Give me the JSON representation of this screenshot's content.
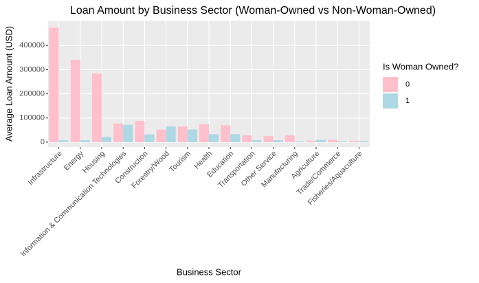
{
  "chart_data": {
    "type": "bar",
    "title": "Loan Amount by Business Sector (Woman-Owned vs Non-Woman-Owned)",
    "x_label": "Business Sector",
    "y_label": "Average Loan Amount (USD)",
    "legend_title": "Is Woman Owned?",
    "categories": [
      "Infrastructure",
      "Energy",
      "Housing",
      "Information & Communication Technologies",
      "Construction",
      "Forestry/Wood",
      "Tourism",
      "Health",
      "Education",
      "Transportation",
      "Other Service",
      "Manufacturing",
      "Agriculture",
      "Trade/Commerce",
      "Fisheries/Aquaculture"
    ],
    "series": [
      {
        "name": "0",
        "color": "#FFC0CB",
        "values": [
          474000,
          341000,
          284000,
          77000,
          88000,
          52000,
          65000,
          74000,
          70000,
          28000,
          25000,
          28000,
          6000,
          10000,
          6000
        ]
      },
      {
        "name": "1",
        "color": "#ADD8E6",
        "values": [
          8000,
          8000,
          22000,
          72000,
          32000,
          65000,
          52000,
          33000,
          33000,
          8000,
          8000,
          3000,
          10000,
          3000,
          5000
        ]
      }
    ],
    "ylim": [
      -20000,
      503000
    ],
    "yticks": [
      0,
      100000,
      200000,
      300000,
      400000
    ],
    "grid": true,
    "legend_position": "right"
  }
}
